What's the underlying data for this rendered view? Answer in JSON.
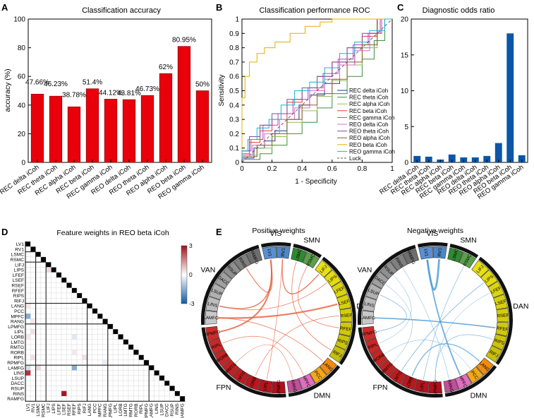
{
  "panel_labels": {
    "A": "A",
    "B": "B",
    "C": "C",
    "D": "D",
    "E": "E"
  },
  "chart_data": [
    {
      "id": "A",
      "type": "bar",
      "title": "Classification accuracy",
      "xlabel": "",
      "ylabel": "accuracy (%)",
      "ylim": [
        0,
        100
      ],
      "yticks": [
        0,
        20,
        40,
        60,
        80,
        100
      ],
      "bar_color": "#e8000b",
      "categories": [
        "REC delta iCoh",
        "REC theta iCoh",
        "REC alpha iCoh",
        "REC beta iCoh",
        "REC gamma iCoh",
        "REO delta iCoh",
        "REO theta iCoh",
        "REO alpha iCoh",
        "REO beta iCoh",
        "REO gamma iCoh"
      ],
      "values": [
        47.66,
        46.23,
        38.78,
        51.4,
        44.12,
        43.81,
        46.73,
        62,
        80.95,
        50
      ],
      "value_labels": [
        "47.66%",
        "46.23%",
        "38.78%",
        "51.4%",
        "44.12%",
        "43.81%",
        "46.73%",
        "62%",
        "80.95%",
        "50%"
      ]
    },
    {
      "id": "B",
      "type": "line",
      "title": "Classification performance ROC",
      "xlabel": "1 - Specificity",
      "ylabel": "Sensitivity",
      "xlim": [
        0,
        1
      ],
      "ylim": [
        0,
        1
      ],
      "xticks": [
        "0",
        "0.2",
        "0.4",
        "0.6",
        "0.8",
        "1"
      ],
      "yticks": [
        "0",
        "0.1",
        "0.2",
        "0.3",
        "0.4",
        "0.5",
        "0.6",
        "0.7",
        "0.8",
        "0.9",
        "1"
      ],
      "legend_position": "bottom-right",
      "series": [
        {
          "name": "REC delta iCoh",
          "color": "#1f3a8a",
          "points": [
            [
              0,
              0
            ],
            [
              0.08,
              0.03
            ],
            [
              0.15,
              0.1
            ],
            [
              0.22,
              0.15
            ],
            [
              0.3,
              0.22
            ],
            [
              0.38,
              0.3
            ],
            [
              0.45,
              0.4
            ],
            [
              0.55,
              0.47
            ],
            [
              0.65,
              0.55
            ],
            [
              0.75,
              0.68
            ],
            [
              0.85,
              0.8
            ],
            [
              0.93,
              0.9
            ],
            [
              1,
              1
            ]
          ]
        },
        {
          "name": "REC theta iCoh",
          "color": "#3e8e41",
          "points": [
            [
              0,
              0
            ],
            [
              0.12,
              0.02
            ],
            [
              0.2,
              0.06
            ],
            [
              0.3,
              0.12
            ],
            [
              0.4,
              0.2
            ],
            [
              0.5,
              0.28
            ],
            [
              0.6,
              0.38
            ],
            [
              0.7,
              0.48
            ],
            [
              0.8,
              0.6
            ],
            [
              0.88,
              0.72
            ],
            [
              0.95,
              0.85
            ],
            [
              1,
              1
            ]
          ]
        },
        {
          "name": "REC alpha iCoh",
          "color": "#8fbc5a",
          "points": [
            [
              0,
              0
            ],
            [
              0.1,
              0.05
            ],
            [
              0.2,
              0.1
            ],
            [
              0.3,
              0.18
            ],
            [
              0.4,
              0.28
            ],
            [
              0.5,
              0.36
            ],
            [
              0.6,
              0.46
            ],
            [
              0.7,
              0.57
            ],
            [
              0.8,
              0.68
            ],
            [
              0.9,
              0.8
            ],
            [
              1,
              1
            ]
          ]
        },
        {
          "name": "REC beta iCoh",
          "color": "#e63a3a",
          "points": [
            [
              0,
              0
            ],
            [
              0.05,
              0.06
            ],
            [
              0.12,
              0.14
            ],
            [
              0.2,
              0.22
            ],
            [
              0.3,
              0.3
            ],
            [
              0.4,
              0.42
            ],
            [
              0.5,
              0.5
            ],
            [
              0.6,
              0.6
            ],
            [
              0.7,
              0.7
            ],
            [
              0.8,
              0.8
            ],
            [
              0.9,
              0.88
            ],
            [
              1,
              1
            ]
          ]
        },
        {
          "name": "REC gamma iCoh",
          "color": "#c03cc0",
          "points": [
            [
              0,
              0
            ],
            [
              0.06,
              0.08
            ],
            [
              0.14,
              0.16
            ],
            [
              0.24,
              0.26
            ],
            [
              0.34,
              0.34
            ],
            [
              0.44,
              0.44
            ],
            [
              0.54,
              0.52
            ],
            [
              0.64,
              0.62
            ],
            [
              0.74,
              0.72
            ],
            [
              0.84,
              0.82
            ],
            [
              0.92,
              0.9
            ],
            [
              1,
              1
            ]
          ]
        },
        {
          "name": "REO delta iCoh",
          "color": "#d56ec7",
          "points": [
            [
              0,
              0
            ],
            [
              0.07,
              0.05
            ],
            [
              0.15,
              0.12
            ],
            [
              0.25,
              0.2
            ],
            [
              0.35,
              0.3
            ],
            [
              0.45,
              0.38
            ],
            [
              0.55,
              0.5
            ],
            [
              0.65,
              0.58
            ],
            [
              0.75,
              0.68
            ],
            [
              0.85,
              0.78
            ],
            [
              0.93,
              0.9
            ],
            [
              1,
              1
            ]
          ]
        },
        {
          "name": "REO theta iCoh",
          "color": "#7b4fa0",
          "points": [
            [
              0,
              0
            ],
            [
              0.05,
              0.08
            ],
            [
              0.12,
              0.18
            ],
            [
              0.2,
              0.26
            ],
            [
              0.3,
              0.34
            ],
            [
              0.4,
              0.44
            ],
            [
              0.5,
              0.52
            ],
            [
              0.6,
              0.6
            ],
            [
              0.7,
              0.7
            ],
            [
              0.8,
              0.8
            ],
            [
              0.9,
              0.9
            ],
            [
              1,
              1
            ]
          ]
        },
        {
          "name": "REO alpha iCoh",
          "color": "#8c5a2b",
          "points": [
            [
              0,
              0
            ],
            [
              0.1,
              0.04
            ],
            [
              0.2,
              0.12
            ],
            [
              0.3,
              0.2
            ],
            [
              0.4,
              0.3
            ],
            [
              0.5,
              0.4
            ],
            [
              0.6,
              0.48
            ],
            [
              0.7,
              0.58
            ],
            [
              0.8,
              0.7
            ],
            [
              0.9,
              0.82
            ],
            [
              1,
              1
            ]
          ]
        },
        {
          "name": "REO beta iCoh",
          "color": "#e0b000",
          "points": [
            [
              0,
              0
            ],
            [
              0,
              0.35
            ],
            [
              0.02,
              0.45
            ],
            [
              0.05,
              0.6
            ],
            [
              0.1,
              0.7
            ],
            [
              0.15,
              0.76
            ],
            [
              0.22,
              0.8
            ],
            [
              0.32,
              0.84
            ],
            [
              0.42,
              0.9
            ],
            [
              0.52,
              0.95
            ],
            [
              0.6,
              0.98
            ],
            [
              0.7,
              1
            ],
            [
              1,
              1
            ]
          ]
        },
        {
          "name": "REO gamma iCoh",
          "color": "#17b4cf",
          "points": [
            [
              0,
              0
            ],
            [
              0.04,
              0.08
            ],
            [
              0.1,
              0.16
            ],
            [
              0.18,
              0.24
            ],
            [
              0.26,
              0.3
            ],
            [
              0.35,
              0.4
            ],
            [
              0.45,
              0.5
            ],
            [
              0.55,
              0.56
            ],
            [
              0.65,
              0.66
            ],
            [
              0.75,
              0.76
            ],
            [
              0.85,
              0.84
            ],
            [
              0.95,
              0.92
            ],
            [
              1,
              1
            ]
          ]
        },
        {
          "name": "Luck",
          "color": "#555555",
          "dashed": true,
          "points": [
            [
              0,
              0
            ],
            [
              1,
              1
            ]
          ]
        }
      ]
    },
    {
      "id": "C",
      "type": "bar",
      "title": "Diagnostic odds ratio",
      "ylim": [
        0,
        20
      ],
      "yticks": [
        0,
        5,
        10,
        15,
        20
      ],
      "bar_color": "#0b56a8",
      "categories": [
        "REC delta iCoh",
        "REC theta iCoh",
        "REC alpha iCoh",
        "REC beta iCoh",
        "REC gamma iCoh",
        "REO delta iCoh",
        "REO theta iCoh",
        "REO alpha iCoh",
        "REO beta iCoh",
        "REO gamma iCoh"
      ],
      "values": [
        0.9,
        0.8,
        0.4,
        1.1,
        0.7,
        0.7,
        0.9,
        2.7,
        18,
        1
      ]
    },
    {
      "id": "D",
      "type": "heatmap",
      "title": "Feature weights in REO beta iCoh",
      "colorbar_ticks": [
        "3",
        "0",
        "-3"
      ],
      "labels": [
        "LV1",
        "RV1",
        "LSMC",
        "RSMC",
        "LIFJ",
        "LIPS",
        "LFEF",
        "LSEF",
        "RSEF",
        "RFEF",
        "RIPS",
        "RIFJ",
        "LANG",
        "PCC",
        "MPFC",
        "RANG",
        "LPMFG",
        "LIPL",
        "LORB",
        "LMTG",
        "RMTG",
        "RORB",
        "RIPL",
        "RPMFG",
        "LAMFG",
        "LINS",
        "LSUP",
        "DACC",
        "RSUP",
        "RINS",
        "RAMFG"
      ],
      "group_boundaries_after": [
        1,
        3,
        11,
        15,
        23
      ],
      "cells": [
        {
          "row": 14,
          "col": 0,
          "value": -1.5
        },
        {
          "row": 18,
          "col": 0,
          "value": 0.3
        },
        {
          "row": 24,
          "col": 0,
          "value": -0.6
        },
        {
          "row": 25,
          "col": 0,
          "value": 2.5
        },
        {
          "row": 15,
          "col": 1,
          "value": 0.3
        },
        {
          "row": 22,
          "col": 1,
          "value": 0.4
        },
        {
          "row": 5,
          "col": 4,
          "value": 0.5
        },
        {
          "row": 24,
          "col": 2,
          "value": 0.5
        },
        {
          "row": 18,
          "col": 9,
          "value": -0.4
        },
        {
          "row": 21,
          "col": 9,
          "value": 0.3
        },
        {
          "row": 24,
          "col": 9,
          "value": -1.5
        },
        {
          "row": 29,
          "col": 7,
          "value": 2.9
        },
        {
          "row": 23,
          "col": 15,
          "value": -0.3
        },
        {
          "row": 22,
          "col": 11,
          "value": 0.4
        },
        {
          "row": 17,
          "col": 1,
          "value": 0.4
        },
        {
          "row": 12,
          "col": 0,
          "value": 0.3
        }
      ]
    },
    {
      "id": "E",
      "type": "chord",
      "titles": [
        "Positive weights",
        "Negative weights"
      ],
      "groups": [
        {
          "name": "VIS",
          "color": "#4f86c6",
          "nodes": [
            "LV1",
            "RV1"
          ]
        },
        {
          "name": "SMN",
          "color": "#3e8e41",
          "nodes": [
            "LSMC",
            "RSMC"
          ]
        },
        {
          "name": "DAN",
          "color": "#d4c814",
          "nodes": [
            "LIFJ",
            "LIPS",
            "LFEF",
            "LSEF",
            "RSEF",
            "RFEF",
            "RIPS",
            "RIFJ"
          ]
        },
        {
          "name": "DMN",
          "color": "#f0a010",
          "nodes": [
            "LANG",
            "PCC",
            "MPFC",
            "RANG"
          ]
        },
        {
          "name": "FPN",
          "color": "#c4151c",
          "nodes": [
            "LPMFG",
            "LIPL",
            "LORB",
            "LMTG",
            "RMTG",
            "RORB",
            "RIPL",
            "RPMFG"
          ]
        },
        {
          "name": "VAN",
          "color": "#8c8c8c",
          "nodes": [
            "LAMFG",
            "LINS",
            "LSUP",
            "DACC",
            "RSUP",
            "RINS",
            "RAMFG"
          ]
        }
      ],
      "node_colors": [
        "#5b8fd0",
        "#4f86c6",
        "#2f8a2f",
        "#5aa04a",
        "#e8e010",
        "#e4dc10",
        "#dcd40e",
        "#d8d00c",
        "#d4cc0c",
        "#d0c80a",
        "#ccc40a",
        "#c8c008",
        "#f08c10",
        "#f4a818",
        "#e070c0",
        "#c0509a",
        "#b0101a",
        "#b4141c",
        "#b8181e",
        "#bc1c20",
        "#c02022",
        "#c42424",
        "#c82828",
        "#cc2c2a",
        "#c8c8c8",
        "#bdbdbd",
        "#b0b0b0",
        "#a0a0a0",
        "#909090",
        "#808080",
        "#6e6e6e"
      ],
      "positive_links": [
        [
          0,
          23,
          2.0
        ],
        [
          1,
          4,
          1.5
        ],
        [
          3,
          9,
          0.8
        ],
        [
          2,
          11,
          0.8
        ],
        [
          5,
          25,
          0.8
        ],
        [
          24,
          12,
          0.8
        ],
        [
          24,
          7,
          2.2
        ],
        [
          0,
          29,
          1.2
        ],
        [
          17,
          1,
          0.7
        ],
        [
          18,
          8,
          0.7
        ],
        [
          14,
          22,
          0.7
        ],
        [
          15,
          20,
          0.6
        ],
        [
          25,
          0,
          1.5
        ]
      ],
      "negative_links": [
        [
          0,
          1,
          2.8
        ],
        [
          14,
          0,
          1.8
        ],
        [
          24,
          9,
          1.6
        ],
        [
          18,
          12,
          1.2
        ],
        [
          19,
          5,
          0.7
        ],
        [
          23,
          26,
          0.7
        ],
        [
          16,
          10,
          0.6
        ],
        [
          17,
          3,
          0.6
        ],
        [
          20,
          27,
          0.5
        ],
        [
          21,
          13,
          0.5
        ],
        [
          22,
          28,
          0.5
        ],
        [
          16,
          6,
          0.5
        ],
        [
          15,
          29,
          0.5
        ]
      ]
    }
  ]
}
